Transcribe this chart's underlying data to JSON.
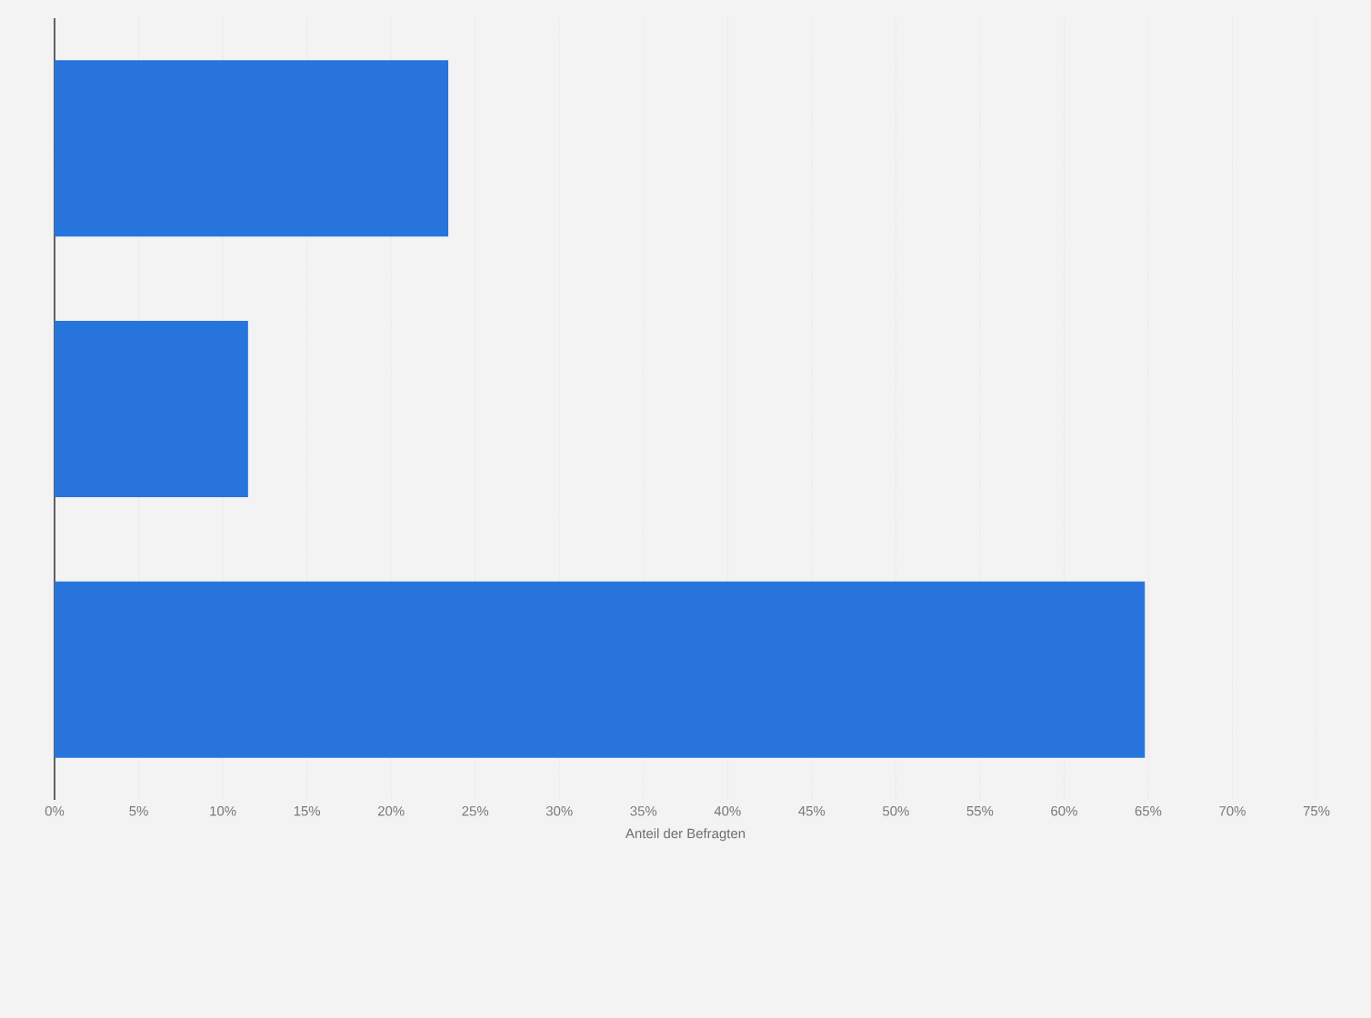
{
  "chart_data": {
    "type": "bar",
    "orientation": "horizontal",
    "categories": [
      null,
      null,
      null
    ],
    "values": [
      23.4,
      11.5,
      64.8
    ],
    "color": "#2775dc",
    "xlabel": "Anteil der Befragten",
    "xlim": [
      0,
      75
    ],
    "xticks": [
      {
        "value": 0,
        "label": "0%"
      },
      {
        "value": 5,
        "label": "5%"
      },
      {
        "value": 10,
        "label": "10%"
      },
      {
        "value": 15,
        "label": "15%"
      },
      {
        "value": 20,
        "label": "20%"
      },
      {
        "value": 25,
        "label": "25%"
      },
      {
        "value": 30,
        "label": "30%"
      },
      {
        "value": 35,
        "label": "35%"
      },
      {
        "value": 40,
        "label": "40%"
      },
      {
        "value": 45,
        "label": "45%"
      },
      {
        "value": 50,
        "label": "50%"
      },
      {
        "value": 55,
        "label": "55%"
      },
      {
        "value": 60,
        "label": "60%"
      },
      {
        "value": 65,
        "label": "65%"
      },
      {
        "value": 70,
        "label": "70%"
      },
      {
        "value": 75,
        "label": "75%"
      }
    ],
    "grid": "x"
  }
}
